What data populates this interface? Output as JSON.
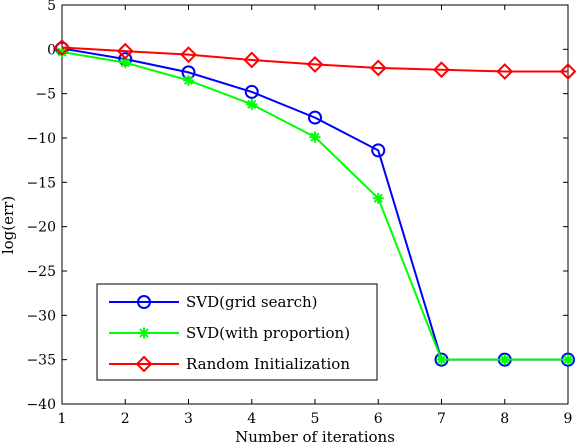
{
  "chart_data": {
    "type": "line",
    "xlabel": "Number of iterations",
    "ylabel": "log(err)",
    "xlim": [
      1,
      9
    ],
    "ylim": [
      -40,
      5
    ],
    "x_ticks": [
      "1",
      "2",
      "3",
      "4",
      "5",
      "6",
      "7",
      "8",
      "9"
    ],
    "y_ticks": [
      "5",
      "0",
      "−5",
      "−10",
      "−15",
      "−20",
      "−25",
      "−30",
      "−35",
      "−40"
    ],
    "x": [
      1,
      2,
      3,
      4,
      5,
      6,
      7,
      8,
      9
    ],
    "grid": false,
    "legend_position": "bottom-left",
    "series": [
      {
        "name": "SVD(grid search)",
        "color": "#0000ff",
        "marker": "circle",
        "values": [
          0.1,
          -1.1,
          -2.6,
          -4.8,
          -7.7,
          -11.4,
          -35,
          -35,
          -35
        ]
      },
      {
        "name": "SVD(with proportion)",
        "color": "#00ff00",
        "marker": "asterisk",
        "values": [
          -0.3,
          -1.5,
          -3.5,
          -6.2,
          -9.9,
          -16.8,
          -35,
          -35,
          -35
        ]
      },
      {
        "name": "Random Initialization",
        "color": "#ff0000",
        "marker": "diamond",
        "values": [
          0.2,
          -0.2,
          -0.6,
          -1.2,
          -1.7,
          -2.1,
          -2.3,
          -2.5,
          -2.5
        ]
      }
    ]
  }
}
